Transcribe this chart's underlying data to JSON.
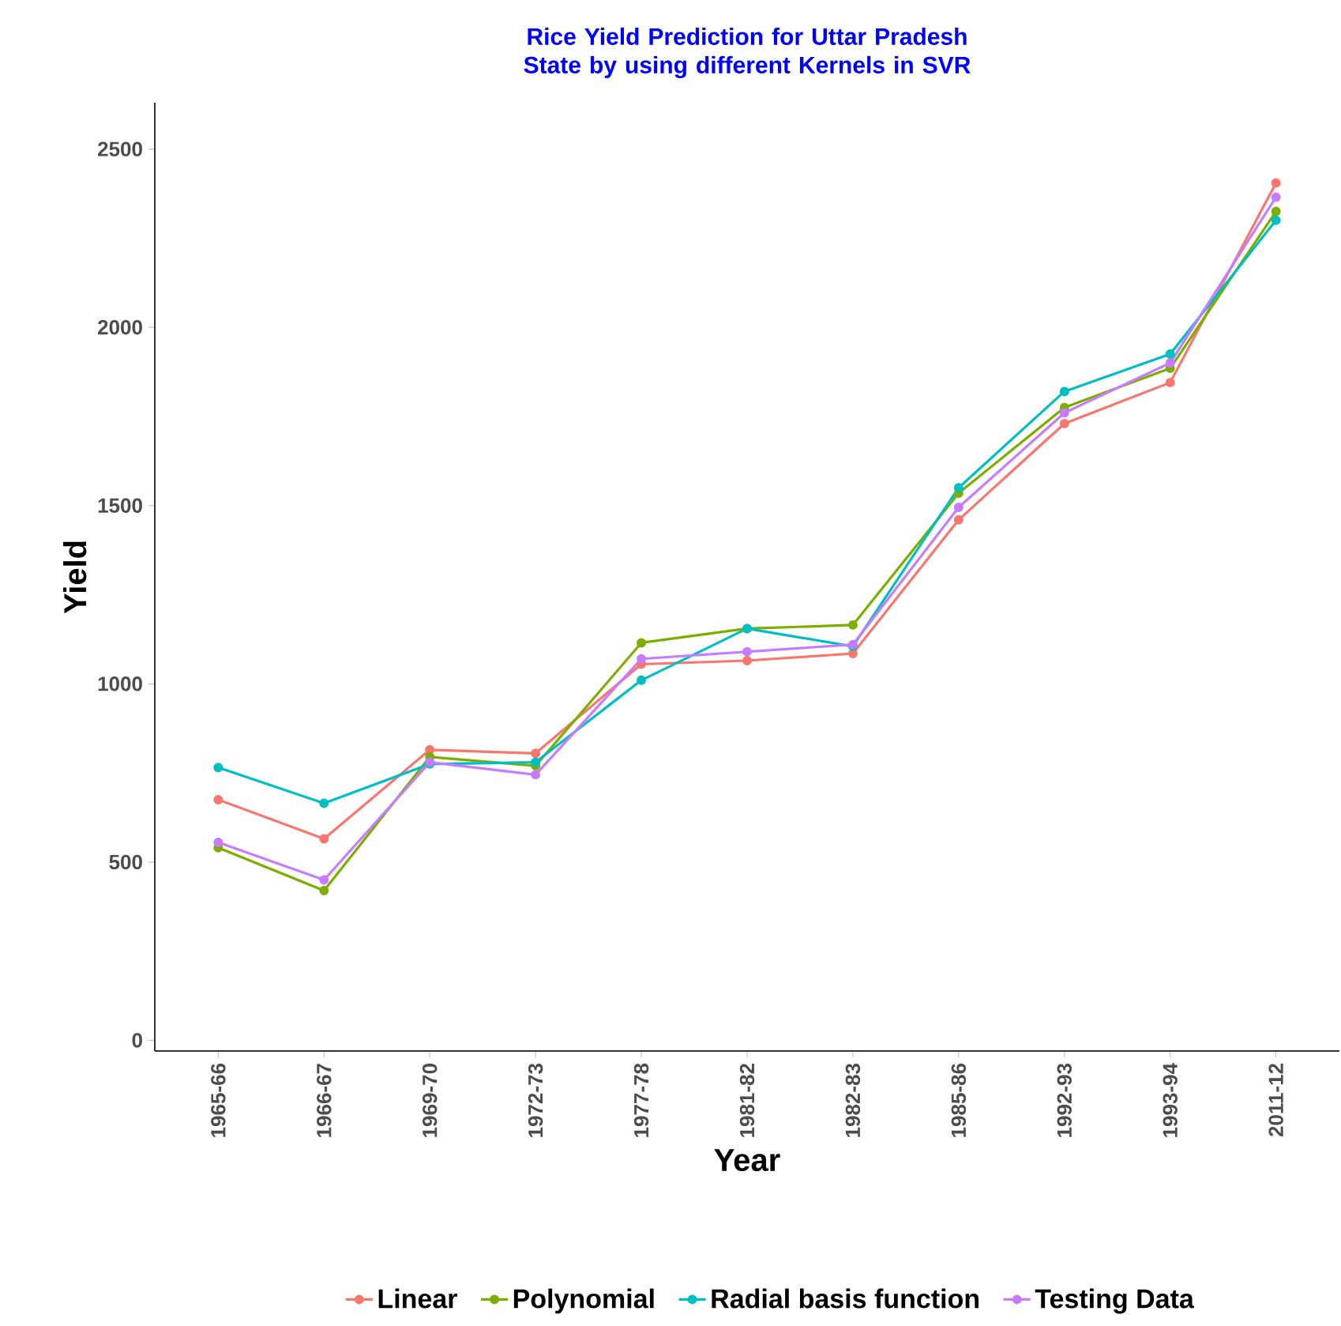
{
  "chart_data": {
    "type": "line",
    "title": "Rice Yield Prediction for Uttar Pradesh State by using different Kernels in SVR",
    "xlabel": "Year",
    "ylabel": "Yield",
    "categories": [
      "1965-66",
      "1966-67",
      "1969-70",
      "1972-73",
      "1977-78",
      "1981-82",
      "1982-83",
      "1985-86",
      "1992-93",
      "1993-94",
      "2011-12"
    ],
    "series": [
      {
        "name": "Linear",
        "color": "#f8766d",
        "values": [
          675,
          565,
          815,
          805,
          1055,
          1065,
          1085,
          1460,
          1730,
          1845,
          2405
        ]
      },
      {
        "name": "Polynomial",
        "color": "#7cae00",
        "values": [
          540,
          420,
          795,
          770,
          1115,
          1155,
          1165,
          1535,
          1775,
          1885,
          2325
        ]
      },
      {
        "name": "Radial basis function",
        "color": "#00bfc4",
        "values": [
          765,
          665,
          775,
          780,
          1010,
          1155,
          1105,
          1550,
          1820,
          1925,
          2300
        ]
      },
      {
        "name": "Testing Data",
        "color": "#c77cff",
        "values": [
          555,
          450,
          780,
          745,
          1070,
          1090,
          1110,
          1495,
          1760,
          1900,
          2365
        ]
      }
    ],
    "ylim": [
      -30,
      2630
    ],
    "yticks": [
      0,
      500,
      1000,
      1500,
      2000,
      2500
    ],
    "legend": "bottom",
    "marker": "circle",
    "line_style": "solid"
  }
}
